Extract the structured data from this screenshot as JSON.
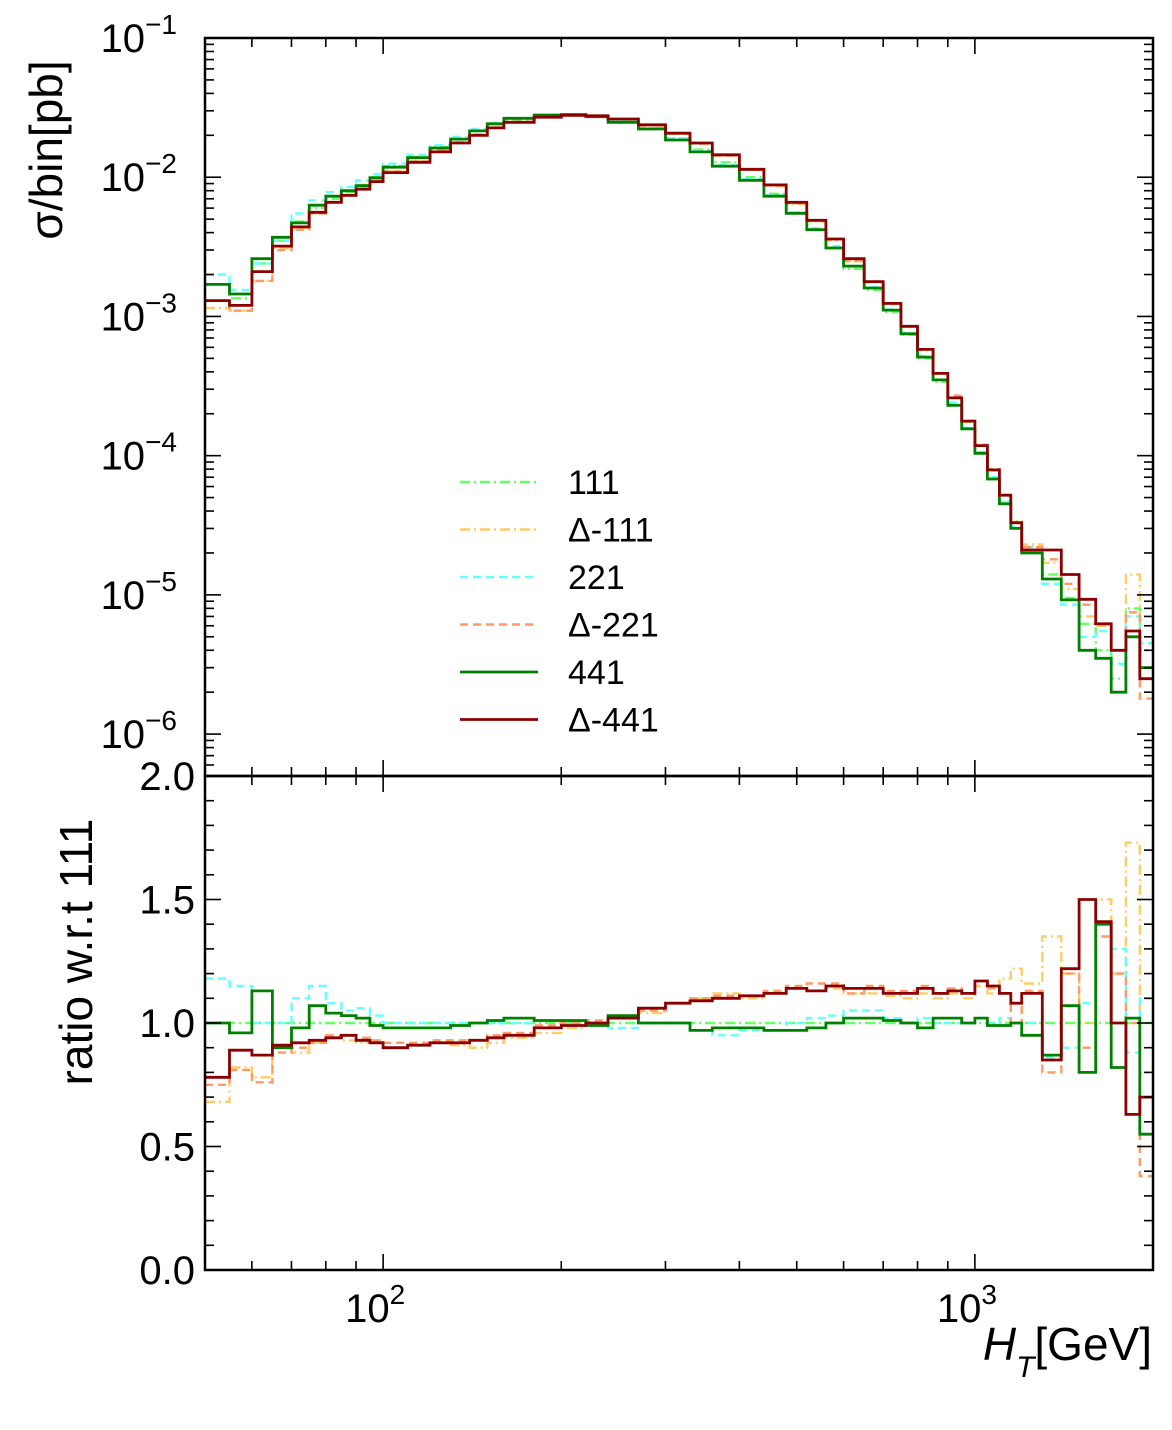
{
  "chart_data": [
    {
      "panel": "main",
      "type": "line",
      "ylabel": "σ/bin[pb]",
      "yscale": "log",
      "ylim": [
        5e-07,
        0.1
      ],
      "xscale": "log",
      "xlim": [
        50,
        2000
      ],
      "y_tick_labels": [
        {
          "base": "10",
          "exp": "−1",
          "value": 0.1
        },
        {
          "base": "10",
          "exp": "−2",
          "value": 0.01
        },
        {
          "base": "10",
          "exp": "−3",
          "value": 0.001
        },
        {
          "base": "10",
          "exp": "−4",
          "value": 0.0001
        },
        {
          "base": "10",
          "exp": "−5",
          "value": 1e-05
        },
        {
          "base": "10",
          "exp": "−6",
          "value": 1e-06
        }
      ],
      "x": [
        50,
        55,
        60,
        65,
        70,
        75,
        80,
        85,
        90,
        95,
        100,
        110,
        120,
        130,
        140,
        150,
        160,
        180,
        200,
        220,
        240,
        270,
        300,
        330,
        360,
        400,
        440,
        480,
        520,
        560,
        600,
        650,
        700,
        750,
        800,
        850,
        900,
        950,
        1000,
        1050,
        1100,
        1150,
        1200,
        1300,
        1400,
        1500,
        1600,
        1700,
        1800,
        1900
      ],
      "legend": {
        "position": "center",
        "labels": [
          "111",
          "Δ-111",
          "221",
          "Δ-221",
          "441",
          "Δ-441"
        ]
      },
      "series": [
        {
          "name": "111",
          "color": "#66ff66",
          "dash": "dashdot",
          "values": [
            0.0017,
            0.00135,
            0.0024,
            0.0035,
            0.0048,
            0.006,
            0.007,
            0.0078,
            0.0088,
            0.01,
            0.012,
            0.014,
            0.0165,
            0.019,
            0.0215,
            0.024,
            0.026,
            0.0275,
            0.028,
            0.0275,
            0.0255,
            0.0225,
            0.019,
            0.0158,
            0.0128,
            0.01,
            0.0076,
            0.0056,
            0.0042,
            0.0031,
            0.0022,
            0.00155,
            0.00108,
            0.00074,
            0.0005,
            0.00034,
            0.00023,
            0.000155,
            0.000104,
            6.8e-05,
            4.6e-05,
            3e-05,
            2.1e-05,
            1.4e-05,
            9.5e-06,
            6.2e-06,
            4e-06,
            2.5e-06,
            8e-06,
            4e-06
          ]
        },
        {
          "name": "Δ-111",
          "color": "#ffcc66",
          "dash": "dashdot",
          "values": [
            0.00115,
            0.0011,
            0.0018,
            0.0031,
            0.0043,
            0.0055,
            0.0066,
            0.0074,
            0.0083,
            0.0095,
            0.011,
            0.013,
            0.0155,
            0.0178,
            0.02,
            0.0225,
            0.0248,
            0.027,
            0.0278,
            0.0275,
            0.026,
            0.0235,
            0.0205,
            0.0174,
            0.0143,
            0.0113,
            0.0086,
            0.0064,
            0.0048,
            0.0035,
            0.0025,
            0.00175,
            0.00122,
            0.00084,
            0.00057,
            0.00039,
            0.00026,
            0.000175,
            0.000118,
            7.8e-05,
            5.2e-05,
            3.4e-05,
            2.3e-05,
            1.7e-05,
            1.1e-05,
            7e-06,
            6e-06,
            4e-06,
            1.4e-05,
            3e-06
          ]
        },
        {
          "name": "221",
          "color": "#66ffff",
          "dash": "dashed",
          "values": [
            0.002,
            0.00155,
            0.0024,
            0.0035,
            0.0055,
            0.0068,
            0.0078,
            0.0085,
            0.0095,
            0.0105,
            0.0125,
            0.0145,
            0.017,
            0.0195,
            0.0222,
            0.0245,
            0.0265,
            0.0277,
            0.028,
            0.0275,
            0.0255,
            0.0225,
            0.019,
            0.0155,
            0.0122,
            0.0097,
            0.0074,
            0.0056,
            0.0043,
            0.0032,
            0.0023,
            0.00162,
            0.00112,
            0.00076,
            0.00052,
            0.00035,
            0.00024,
            0.000158,
            0.000106,
            7e-05,
            4.7e-05,
            3.1e-05,
            2.2e-05,
            1.2e-05,
            8.5e-06,
            5e-06,
            5.5e-06,
            3.2e-06,
            7e-06,
            4.5e-06
          ]
        },
        {
          "name": "Δ-221",
          "color": "#ff9966",
          "dash": "dashed",
          "values": [
            0.0013,
            0.0011,
            0.0018,
            0.003,
            0.0042,
            0.0055,
            0.0066,
            0.0074,
            0.0083,
            0.0094,
            0.011,
            0.013,
            0.0155,
            0.0178,
            0.0202,
            0.0228,
            0.025,
            0.0272,
            0.028,
            0.0277,
            0.0262,
            0.0237,
            0.0206,
            0.0175,
            0.0143,
            0.0113,
            0.0087,
            0.0065,
            0.0049,
            0.0036,
            0.0025,
            0.00178,
            0.00123,
            0.00085,
            0.00058,
            0.00039,
            0.00027,
            0.000178,
            0.00012,
            8e-05,
            5.2e-05,
            3.3e-05,
            2.2e-05,
            1.8e-05,
            1.2e-05,
            8.5e-06,
            6.2e-06,
            4e-06,
            7.5e-06,
            1.8e-06
          ]
        },
        {
          "name": "441",
          "color": "#008000",
          "dash": "solid",
          "values": [
            0.0017,
            0.00145,
            0.0026,
            0.0037,
            0.0047,
            0.0063,
            0.0073,
            0.008,
            0.0087,
            0.0099,
            0.0118,
            0.0138,
            0.0162,
            0.0188,
            0.0215,
            0.0242,
            0.0265,
            0.028,
            0.0282,
            0.0272,
            0.0248,
            0.0222,
            0.0185,
            0.0152,
            0.012,
            0.0095,
            0.0073,
            0.0055,
            0.0042,
            0.0031,
            0.0023,
            0.0016,
            0.00111,
            0.00075,
            0.00051,
            0.00035,
            0.00023,
            0.000156,
            0.000104,
            6.8e-05,
            4.5e-05,
            3e-05,
            2e-05,
            1.3e-05,
            9.2e-06,
            4e-06,
            3.5e-06,
            2e-06,
            5e-06,
            3e-06
          ]
        },
        {
          "name": "Δ-441",
          "color": "#8b0000",
          "dash": "solid",
          "values": [
            0.0013,
            0.0012,
            0.0021,
            0.0032,
            0.0044,
            0.0056,
            0.0066,
            0.0074,
            0.0082,
            0.0093,
            0.0108,
            0.0128,
            0.0152,
            0.0176,
            0.02,
            0.0226,
            0.0248,
            0.027,
            0.0278,
            0.0276,
            0.0262,
            0.0238,
            0.0207,
            0.0176,
            0.0145,
            0.0114,
            0.0088,
            0.0066,
            0.0049,
            0.0036,
            0.0026,
            0.00178,
            0.00124,
            0.00085,
            0.00058,
            0.00039,
            0.00026,
            0.000177,
            0.000118,
            7.9e-05,
            5.2e-05,
            3.3e-05,
            2.1e-05,
            2.1e-05,
            1.4e-05,
            9.3e-06,
            6.2e-06,
            4e-06,
            5.5e-06,
            2.5e-06
          ]
        }
      ]
    },
    {
      "panel": "ratio",
      "type": "line",
      "xlabel": "H_T[GeV]",
      "xlabel_main": "H",
      "xlabel_sub": "T",
      "xlabel_unit": "[GeV]",
      "ylabel": "ratio w.r.t 111",
      "ylim": [
        0.0,
        2.0
      ],
      "y_tick_labels": [
        "0.0",
        "0.5",
        "1.0",
        "1.5",
        "2.0"
      ],
      "xscale": "log",
      "xlim": [
        50,
        2000
      ],
      "x_tick_labels": [
        {
          "base": "10",
          "exp": "2",
          "value": 100
        },
        {
          "base": "10",
          "exp": "3",
          "value": 1000
        }
      ],
      "x": [
        50,
        55,
        60,
        65,
        70,
        75,
        80,
        85,
        90,
        95,
        100,
        110,
        120,
        130,
        140,
        150,
        160,
        180,
        200,
        220,
        240,
        270,
        300,
        330,
        360,
        400,
        440,
        480,
        520,
        560,
        600,
        650,
        700,
        750,
        800,
        850,
        900,
        950,
        1000,
        1050,
        1100,
        1150,
        1200,
        1300,
        1400,
        1500,
        1600,
        1700,
        1800,
        1900
      ],
      "series": [
        {
          "name": "111",
          "color": "#66ff66",
          "dash": "dashdot",
          "values": [
            1.0,
            1.0,
            1.0,
            1.0,
            1.0,
            1.0,
            1.0,
            1.0,
            1.0,
            1.0,
            1.0,
            1.0,
            1.0,
            1.0,
            1.0,
            1.0,
            1.0,
            1.0,
            1.0,
            1.0,
            1.0,
            1.0,
            1.0,
            1.0,
            1.0,
            1.0,
            1.0,
            1.0,
            1.0,
            1.0,
            1.0,
            1.0,
            1.0,
            1.0,
            1.0,
            1.0,
            1.0,
            1.0,
            1.0,
            1.0,
            1.0,
            1.0,
            1.0,
            1.0,
            1.0,
            1.0,
            1.0,
            1.0,
            1.0,
            1.0
          ]
        },
        {
          "name": "Δ-111",
          "color": "#ffcc66",
          "dash": "dashdot",
          "values": [
            0.68,
            0.82,
            0.78,
            0.9,
            0.88,
            0.92,
            0.94,
            0.93,
            0.92,
            0.93,
            0.9,
            0.91,
            0.92,
            0.91,
            0.9,
            0.92,
            0.94,
            0.96,
            0.98,
            1.0,
            1.02,
            1.04,
            1.08,
            1.1,
            1.12,
            1.1,
            1.12,
            1.14,
            1.13,
            1.14,
            1.12,
            1.12,
            1.11,
            1.1,
            1.12,
            1.1,
            1.12,
            1.1,
            1.15,
            1.12,
            1.18,
            1.22,
            1.16,
            1.35,
            1.2,
            1.0,
            1.5,
            1.2,
            1.73,
            0.8
          ]
        },
        {
          "name": "221",
          "color": "#66ffff",
          "dash": "dashed",
          "values": [
            1.18,
            1.15,
            1.0,
            1.0,
            1.1,
            1.15,
            1.08,
            1.05,
            1.06,
            1.03,
            1.0,
            1.0,
            1.0,
            1.0,
            1.0,
            1.0,
            1.0,
            0.98,
            0.99,
            0.99,
            0.98,
            1.0,
            1.0,
            0.97,
            0.95,
            0.97,
            0.97,
            1.0,
            1.02,
            1.03,
            1.05,
            1.05,
            1.02,
            1.0,
            1.02,
            1.0,
            1.0,
            1.0,
            1.02,
            1.0,
            1.02,
            1.0,
            1.0,
            0.86,
            0.9,
            1.08,
            1.4,
            1.3,
            0.88,
            1.1
          ]
        },
        {
          "name": "Δ-221",
          "color": "#ff9966",
          "dash": "dashed",
          "values": [
            0.75,
            0.81,
            0.76,
            0.88,
            0.9,
            0.92,
            0.95,
            0.95,
            0.94,
            0.93,
            0.92,
            0.92,
            0.93,
            0.93,
            0.93,
            0.95,
            0.96,
            0.99,
            1.0,
            1.01,
            1.03,
            1.05,
            1.08,
            1.1,
            1.11,
            1.11,
            1.13,
            1.15,
            1.16,
            1.16,
            1.12,
            1.15,
            1.13,
            1.13,
            1.15,
            1.12,
            1.14,
            1.12,
            1.17,
            1.14,
            1.12,
            1.0,
            1.13,
            0.8,
            1.2,
            0.9,
            1.35,
            1.2,
            1.0,
            0.38
          ]
        },
        {
          "name": "441",
          "color": "#008000",
          "dash": "solid",
          "values": [
            1.0,
            0.96,
            1.13,
            0.9,
            0.98,
            1.07,
            1.04,
            1.03,
            1.02,
            0.99,
            0.98,
            0.98,
            0.98,
            0.99,
            1.0,
            1.01,
            1.02,
            1.01,
            1.01,
            0.99,
            1.03,
            1.0,
            1.0,
            0.97,
            0.98,
            0.98,
            0.97,
            0.97,
            0.98,
            1.0,
            1.02,
            1.02,
            1.01,
            1.0,
            0.98,
            1.02,
            1.02,
            1.0,
            1.02,
            0.99,
            0.99,
            1.0,
            0.95,
            0.87,
            1.07,
            0.8,
            1.4,
            0.82,
            1.02,
            0.55
          ]
        },
        {
          "name": "Δ-441",
          "color": "#8b0000",
          "dash": "solid",
          "values": [
            0.78,
            0.89,
            0.87,
            0.91,
            0.92,
            0.93,
            0.94,
            0.95,
            0.93,
            0.92,
            0.9,
            0.91,
            0.92,
            0.92,
            0.93,
            0.94,
            0.95,
            0.98,
            0.99,
            1.0,
            1.02,
            1.06,
            1.08,
            1.09,
            1.1,
            1.11,
            1.12,
            1.14,
            1.13,
            1.15,
            1.14,
            1.14,
            1.12,
            1.12,
            1.14,
            1.12,
            1.13,
            1.12,
            1.17,
            1.15,
            1.12,
            1.08,
            1.12,
            0.85,
            1.22,
            1.5,
            1.41,
            1.0,
            0.63,
            0.7
          ]
        }
      ]
    }
  ]
}
